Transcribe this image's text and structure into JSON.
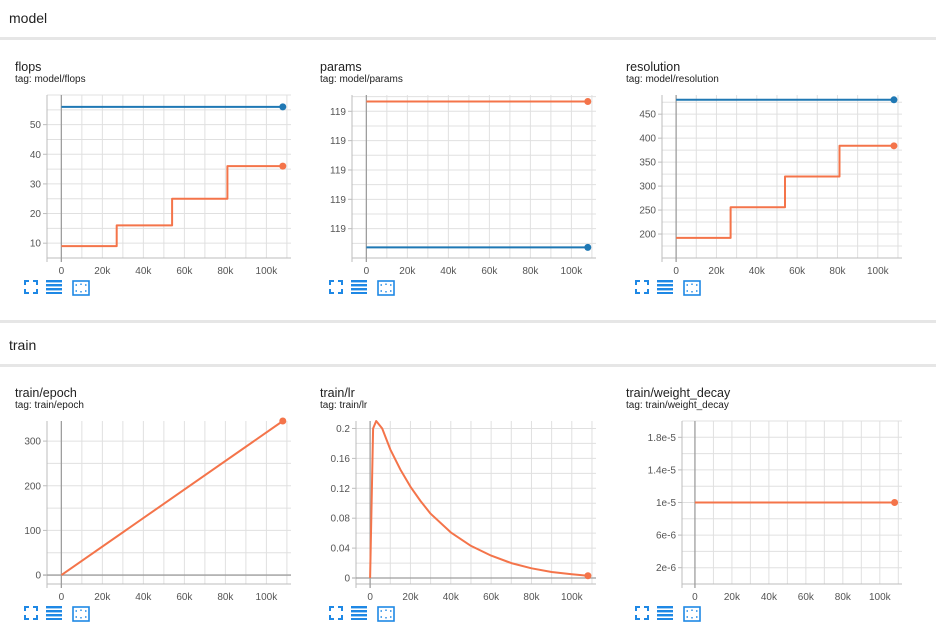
{
  "sections": {
    "model": "model",
    "train": "train"
  },
  "colors": {
    "blue": "#1f78b4",
    "orange": "#f4744a",
    "grid": "#e0e0e0",
    "axis": "#9e9e9e"
  },
  "tool_icons": [
    "fullscreen-icon",
    "data-list-icon",
    "fit-domain-icon"
  ],
  "chart_data": [
    {
      "type": "line",
      "title": "flops",
      "tag": "tag: model/flops",
      "xlim": [
        -7000,
        112000
      ],
      "ylim": [
        5,
        60
      ],
      "xticks": [
        0,
        20000,
        40000,
        60000,
        80000,
        100000
      ],
      "xtick_labels": [
        "0",
        "20k",
        "40k",
        "60k",
        "80k",
        "100k"
      ],
      "yticks": [
        10,
        20,
        30,
        40,
        50
      ],
      "ytick_labels": [
        "10",
        "20",
        "30",
        "40",
        "50"
      ],
      "series": [
        {
          "color": "blue",
          "step": false,
          "x": [
            0,
            108000
          ],
          "y": [
            56,
            56
          ]
        },
        {
          "color": "orange",
          "step": true,
          "x": [
            0,
            27000,
            54000,
            81000,
            108000
          ],
          "y": [
            9,
            16,
            25,
            36,
            36
          ]
        }
      ]
    },
    {
      "type": "line",
      "title": "params",
      "tag": "tag: model/params",
      "xlim": [
        -7000,
        112000
      ],
      "ylim": [
        0,
        10
      ],
      "xticks": [
        0,
        20000,
        40000,
        60000,
        80000,
        100000
      ],
      "xtick_labels": [
        "0",
        "20k",
        "40k",
        "60k",
        "80k",
        "100k"
      ],
      "yticks": [
        1.8,
        3.6,
        5.4,
        7.2,
        9.0
      ],
      "ytick_labels": [
        "119",
        "119",
        "119",
        "119",
        "119"
      ],
      "series": [
        {
          "color": "orange",
          "step": false,
          "x": [
            0,
            108000
          ],
          "y": [
            9.6,
            9.6
          ]
        },
        {
          "color": "blue",
          "step": false,
          "x": [
            0,
            108000
          ],
          "y": [
            0.65,
            0.65
          ]
        }
      ]
    },
    {
      "type": "line",
      "title": "resolution",
      "tag": "tag: model/resolution",
      "xlim": [
        -7000,
        112000
      ],
      "ylim": [
        150,
        490
      ],
      "xticks": [
        0,
        20000,
        40000,
        60000,
        80000,
        100000
      ],
      "xtick_labels": [
        "0",
        "20k",
        "40k",
        "60k",
        "80k",
        "100k"
      ],
      "yticks": [
        200,
        250,
        300,
        350,
        400,
        450
      ],
      "ytick_labels": [
        "200",
        "250",
        "300",
        "350",
        "400",
        "450"
      ],
      "series": [
        {
          "color": "blue",
          "step": false,
          "x": [
            0,
            108000
          ],
          "y": [
            480,
            480
          ]
        },
        {
          "color": "orange",
          "step": true,
          "x": [
            0,
            27000,
            54000,
            81000,
            108000
          ],
          "y": [
            192,
            256,
            320,
            384,
            384
          ]
        }
      ]
    },
    {
      "type": "line",
      "title": "train/epoch",
      "tag": "tag: train/epoch",
      "xlim": [
        -7000,
        112000
      ],
      "ylim": [
        -20,
        345
      ],
      "xticks": [
        0,
        20000,
        40000,
        60000,
        80000,
        100000
      ],
      "xtick_labels": [
        "0",
        "20k",
        "40k",
        "60k",
        "80k",
        "100k"
      ],
      "yticks": [
        0,
        100,
        200,
        300
      ],
      "ytick_labels": [
        "0",
        "100",
        "200",
        "300"
      ],
      "series": [
        {
          "color": "orange",
          "step": false,
          "x": [
            0,
            108000
          ],
          "y": [
            0,
            345
          ]
        }
      ]
    },
    {
      "type": "line",
      "title": "train/lr",
      "tag": "tag: train/lr",
      "xlim": [
        -7000,
        112000
      ],
      "ylim": [
        -0.008,
        0.21
      ],
      "xticks": [
        0,
        20000,
        40000,
        60000,
        80000,
        100000
      ],
      "xtick_labels": [
        "0",
        "20k",
        "40k",
        "60k",
        "80k",
        "100k"
      ],
      "yticks": [
        0,
        0.04,
        0.08,
        0.12,
        0.16,
        0.2
      ],
      "ytick_labels": [
        "0",
        "0.04",
        "0.08",
        "0.12",
        "0.16",
        "0.2"
      ],
      "series": [
        {
          "color": "orange",
          "step": false,
          "x": [
            0,
            1500,
            3000,
            6000,
            10000,
            15000,
            20000,
            25000,
            30000,
            40000,
            50000,
            60000,
            70000,
            80000,
            90000,
            100000,
            108000
          ],
          "y": [
            0,
            0.2,
            0.21,
            0.2,
            0.172,
            0.145,
            0.122,
            0.103,
            0.086,
            0.061,
            0.043,
            0.03,
            0.02,
            0.013,
            0.008,
            0.005,
            0.003
          ]
        }
      ]
    },
    {
      "type": "line",
      "title": "train/weight_decay",
      "tag": "tag: train/weight_decay",
      "xlim": [
        -7000,
        112000
      ],
      "ylim": [
        0,
        2e-05
      ],
      "xticks": [
        0,
        20000,
        40000,
        60000,
        80000,
        100000
      ],
      "xtick_labels": [
        "0",
        "20k",
        "40k",
        "60k",
        "80k",
        "100k"
      ],
      "yticks": [
        2e-06,
        6e-06,
        1e-05,
        1.4e-05,
        1.8e-05
      ],
      "ytick_labels": [
        "2e-6",
        "6e-6",
        "1e-5",
        "1.4e-5",
        "1.8e-5"
      ],
      "series": [
        {
          "color": "orange",
          "step": false,
          "x": [
            0,
            108000
          ],
          "y": [
            1e-05,
            1e-05
          ]
        }
      ]
    }
  ]
}
